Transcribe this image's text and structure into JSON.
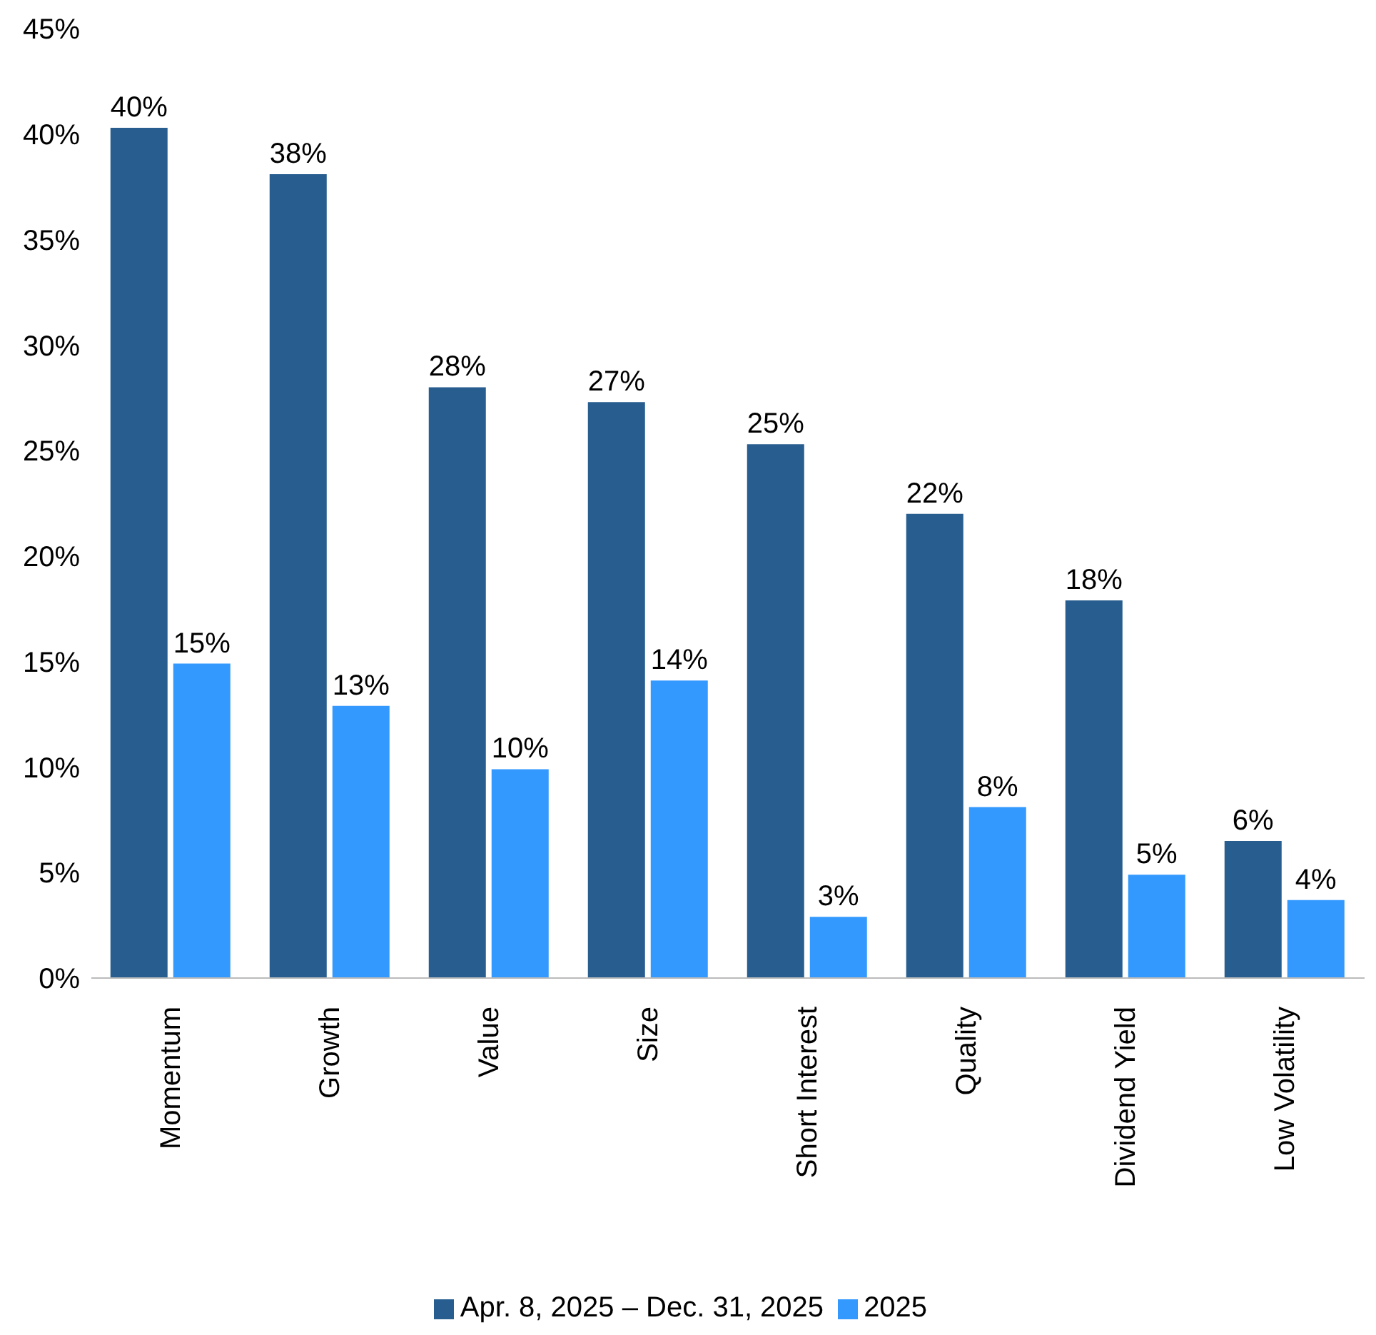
{
  "chart_data": {
    "type": "bar",
    "categories": [
      "Momentum",
      "Growth",
      "Value",
      "Size",
      "Short Interest",
      "Quality",
      "Dividend Yield",
      "Low Volatility"
    ],
    "series": [
      {
        "name": "Apr. 8, 2025 – Dec. 31, 2025",
        "color": "#275d8f",
        "values": [
          40.3,
          38.1,
          28,
          27.3,
          25.3,
          22,
          17.9,
          6.5
        ],
        "value_labels": [
          "40%",
          "38%",
          "28%",
          "27%",
          "25%",
          "22%",
          "18%",
          "6%"
        ]
      },
      {
        "name": "2025",
        "color": "#3399ff",
        "values": [
          14.9,
          12.9,
          9.9,
          14.1,
          2.9,
          8.1,
          4.9,
          3.7
        ],
        "value_labels": [
          "15%",
          "13%",
          "10%",
          "14%",
          "3%",
          "8%",
          "5%",
          "4%"
        ]
      }
    ],
    "ylim": [
      0,
      45
    ],
    "yticks": [
      {
        "value": 0,
        "label": "0%"
      },
      {
        "value": 5,
        "label": "5%"
      },
      {
        "value": 10,
        "label": "10%"
      },
      {
        "value": 15,
        "label": "15%"
      },
      {
        "value": 20,
        "label": "20%"
      },
      {
        "value": 25,
        "label": "25%"
      },
      {
        "value": 30,
        "label": "30%"
      },
      {
        "value": 35,
        "label": "35%"
      },
      {
        "value": 40,
        "label": "40%"
      },
      {
        "value": 45,
        "label": "45%"
      }
    ],
    "grid": false,
    "legend": "bottom"
  }
}
